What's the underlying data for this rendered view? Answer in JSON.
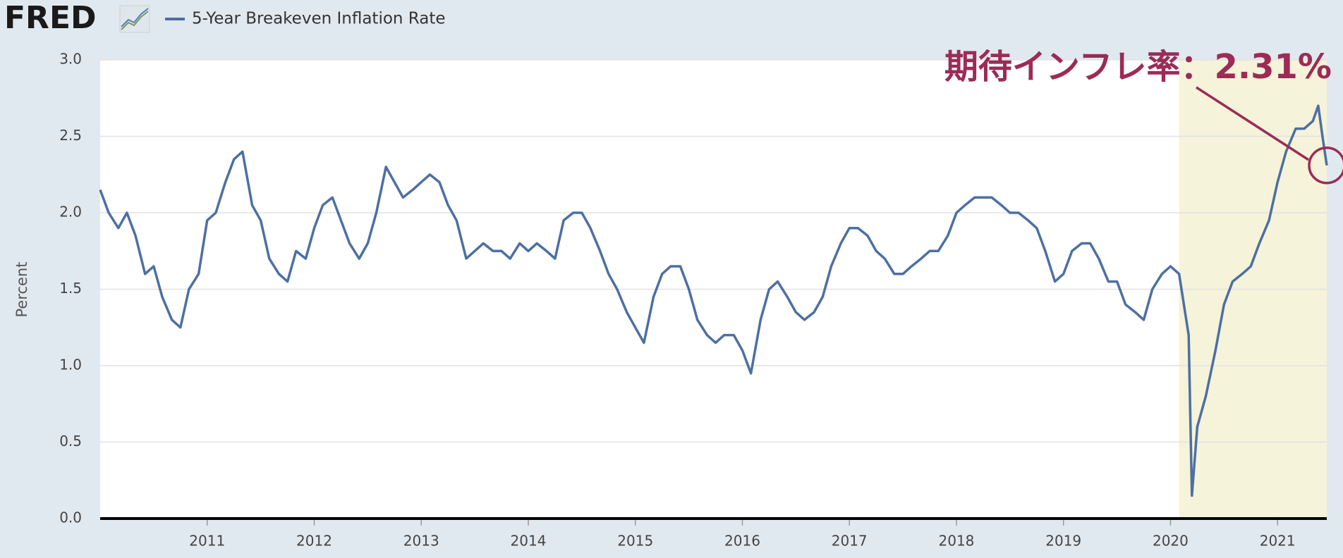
{
  "logo": "FRED",
  "chart_data": {
    "type": "line",
    "y_axis_label": "Percent",
    "annotation": "期待インフレ率：2.31%",
    "annotation_color": "#9b2c55",
    "shaded_region": [
      2020.08,
      2021.46
    ],
    "shade_color": "#f5f3d9",
    "grid": true,
    "xlim": [
      2010.0,
      2021.46
    ],
    "xticks": [
      2011,
      2012,
      2013,
      2014,
      2015,
      2016,
      2017,
      2018,
      2019,
      2020,
      2021
    ],
    "ylim": [
      0,
      3
    ],
    "yticks": [
      {
        "value": 0,
        "label": "0.0"
      },
      0.5,
      {
        "value": 1,
        "label": "1.0"
      },
      1.5,
      {
        "value": 2,
        "label": "2.0"
      },
      2.5,
      {
        "value": 3,
        "label": "3.0"
      }
    ],
    "x": [
      2010.0,
      2010.08,
      2010.17,
      2010.25,
      2010.33,
      2010.42,
      2010.5,
      2010.58,
      2010.67,
      2010.75,
      2010.83,
      2010.92,
      2011.0,
      2011.08,
      2011.17,
      2011.25,
      2011.33,
      2011.42,
      2011.5,
      2011.58,
      2011.67,
      2011.75,
      2011.83,
      2011.92,
      2012.0,
      2012.08,
      2012.17,
      2012.25,
      2012.33,
      2012.42,
      2012.5,
      2012.58,
      2012.67,
      2012.75,
      2012.83,
      2012.92,
      2013.0,
      2013.08,
      2013.17,
      2013.25,
      2013.33,
      2013.42,
      2013.5,
      2013.58,
      2013.67,
      2013.75,
      2013.83,
      2013.92,
      2014.0,
      2014.08,
      2014.17,
      2014.25,
      2014.33,
      2014.42,
      2014.5,
      2014.58,
      2014.67,
      2014.75,
      2014.83,
      2014.92,
      2015.0,
      2015.08,
      2015.17,
      2015.25,
      2015.33,
      2015.42,
      2015.5,
      2015.58,
      2015.67,
      2015.75,
      2015.83,
      2015.92,
      2016.0,
      2016.08,
      2016.17,
      2016.25,
      2016.33,
      2016.42,
      2016.5,
      2016.58,
      2016.67,
      2016.75,
      2016.83,
      2016.92,
      2017.0,
      2017.08,
      2017.17,
      2017.25,
      2017.33,
      2017.42,
      2017.5,
      2017.58,
      2017.67,
      2017.75,
      2017.83,
      2017.92,
      2018.0,
      2018.08,
      2018.17,
      2018.25,
      2018.33,
      2018.42,
      2018.5,
      2018.58,
      2018.67,
      2018.75,
      2018.83,
      2018.92,
      2019.0,
      2019.08,
      2019.17,
      2019.25,
      2019.33,
      2019.42,
      2019.5,
      2019.58,
      2019.67,
      2019.75,
      2019.83,
      2019.92,
      2020.0,
      2020.08,
      2020.17,
      2020.2,
      2020.25,
      2020.33,
      2020.42,
      2020.5,
      2020.58,
      2020.67,
      2020.75,
      2020.83,
      2020.92,
      2021.0,
      2021.08,
      2021.17,
      2021.25,
      2021.33,
      2021.38,
      2021.42,
      2021.46
    ],
    "series": [
      {
        "name": "5-Year Breakeven Inflation Rate",
        "color": "#4d6fa3",
        "values": [
          2.15,
          2.0,
          1.9,
          2.0,
          1.85,
          1.6,
          1.65,
          1.45,
          1.3,
          1.25,
          1.5,
          1.6,
          1.95,
          2.0,
          2.2,
          2.35,
          2.4,
          2.05,
          1.95,
          1.7,
          1.6,
          1.55,
          1.75,
          1.7,
          1.9,
          2.05,
          2.1,
          1.95,
          1.8,
          1.7,
          1.8,
          2.0,
          2.3,
          2.2,
          2.1,
          2.15,
          2.2,
          2.25,
          2.2,
          2.05,
          1.95,
          1.7,
          1.75,
          1.8,
          1.75,
          1.75,
          1.7,
          1.8,
          1.75,
          1.8,
          1.75,
          1.7,
          1.95,
          2.0,
          2.0,
          1.9,
          1.75,
          1.6,
          1.5,
          1.35,
          1.25,
          1.15,
          1.45,
          1.6,
          1.65,
          1.65,
          1.5,
          1.3,
          1.2,
          1.15,
          1.2,
          1.2,
          1.1,
          0.95,
          1.3,
          1.5,
          1.55,
          1.45,
          1.35,
          1.3,
          1.35,
          1.45,
          1.65,
          1.8,
          1.9,
          1.9,
          1.85,
          1.75,
          1.7,
          1.6,
          1.6,
          1.65,
          1.7,
          1.75,
          1.75,
          1.85,
          2.0,
          2.05,
          2.1,
          2.1,
          2.1,
          2.05,
          2.0,
          2.0,
          1.95,
          1.9,
          1.75,
          1.55,
          1.6,
          1.75,
          1.8,
          1.8,
          1.7,
          1.55,
          1.55,
          1.4,
          1.35,
          1.3,
          1.5,
          1.6,
          1.65,
          1.6,
          1.2,
          0.15,
          0.6,
          0.8,
          1.1,
          1.4,
          1.55,
          1.6,
          1.65,
          1.8,
          1.95,
          2.2,
          2.4,
          2.55,
          2.55,
          2.6,
          2.7,
          2.5,
          2.31
        ]
      }
    ]
  }
}
